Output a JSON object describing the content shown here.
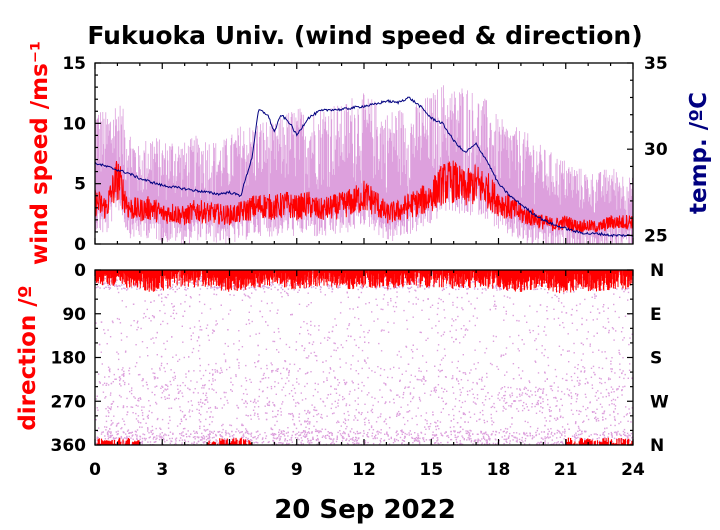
{
  "chart_data": [
    {
      "type": "line",
      "title": "Fukuoka Univ. (wind speed & direction)",
      "ylabel": "wind speed /ms⁻¹",
      "y2label": "temp. /ºC",
      "xlim": [
        0,
        24
      ],
      "ylim": [
        0,
        15
      ],
      "y2lim": [
        24.5,
        35
      ],
      "x_ticks": [
        "0",
        "3",
        "6",
        "9",
        "12",
        "15",
        "18",
        "21",
        "24"
      ],
      "y_ticks": [
        "0",
        "5",
        "10",
        "15"
      ],
      "y2_ticks": [
        "25",
        "30",
        "35"
      ],
      "colors": {
        "gust": "#dda0dd",
        "mean": "#ff0000",
        "temp": "#000080"
      },
      "series": [
        {
          "role": "mean",
          "x": [
            0,
            0.5,
            1,
            1.5,
            2,
            2.5,
            3,
            3.5,
            4,
            4.5,
            5,
            5.5,
            6,
            6.5,
            7,
            7.5,
            8,
            8.5,
            9,
            9.5,
            10,
            10.5,
            11,
            11.5,
            12,
            12.5,
            13,
            13.5,
            14,
            14.5,
            15,
            15.5,
            16,
            16.5,
            17,
            17.5,
            18,
            18.5,
            19,
            19.5,
            20,
            20.5,
            21,
            21.5,
            22,
            22.5,
            23,
            23.5,
            24
          ],
          "y": [
            3.5,
            3.0,
            5.5,
            3.0,
            2.8,
            3.0,
            2.5,
            2.6,
            2.3,
            2.8,
            2.6,
            2.5,
            2.4,
            2.6,
            3.0,
            3.2,
            3.0,
            3.3,
            3.0,
            3.3,
            2.8,
            3.0,
            3.2,
            3.5,
            4.0,
            3.5,
            2.5,
            2.7,
            3.2,
            3.5,
            4.0,
            5.0,
            5.2,
            4.5,
            5.0,
            4.5,
            3.5,
            3.0,
            2.5,
            2.2,
            1.8,
            1.6,
            1.8,
            1.5,
            1.5,
            1.4,
            1.8,
            1.8,
            1.9
          ]
        },
        {
          "role": "gust",
          "x": [
            0,
            0.5,
            1,
            1.5,
            2,
            2.5,
            3,
            3.5,
            4,
            4.5,
            5,
            5.5,
            6,
            6.5,
            7,
            7.5,
            8,
            8.5,
            9,
            9.5,
            10,
            10.5,
            11,
            11.5,
            12,
            12.5,
            13,
            13.5,
            14,
            14.5,
            15,
            15.5,
            16,
            16.5,
            17,
            17.5,
            18,
            18.5,
            19,
            19.5,
            20,
            20.5,
            21,
            21.5,
            22,
            22.5,
            23,
            23.5,
            24
          ],
          "y": [
            12.0,
            11.0,
            12.5,
            10.0,
            8.0,
            9.5,
            8.5,
            9.0,
            8.5,
            9.0,
            9.0,
            8.5,
            9.0,
            10.0,
            10.0,
            10.5,
            10.0,
            11.0,
            11.5,
            11.0,
            11.5,
            12.0,
            11.5,
            12.5,
            12.5,
            12.0,
            11.0,
            11.5,
            11.0,
            12.0,
            12.5,
            13.5,
            13.0,
            13.5,
            12.5,
            12.0,
            10.5,
            10.0,
            9.5,
            9.0,
            8.0,
            7.5,
            7.0,
            6.5,
            6.0,
            6.0,
            6.5,
            6.0,
            5.5
          ]
        },
        {
          "role": "temp",
          "x": [
            0,
            0.5,
            1,
            1.5,
            2,
            2.5,
            3,
            3.5,
            4,
            4.5,
            5,
            5.5,
            6,
            6.5,
            7,
            7.3,
            7.7,
            8,
            8.3,
            8.7,
            9,
            9.5,
            10,
            10.5,
            11,
            11.5,
            12,
            12.5,
            13,
            13.5,
            14,
            14.5,
            15,
            15.5,
            16,
            16.5,
            17,
            17.5,
            18,
            18.5,
            19,
            19.5,
            20,
            20.5,
            21,
            21.5,
            22,
            22.5,
            23,
            23.5,
            24
          ],
          "y": [
            29.2,
            29.0,
            28.8,
            28.6,
            28.3,
            28.1,
            27.9,
            27.8,
            27.7,
            27.6,
            27.5,
            27.4,
            27.5,
            27.3,
            29.5,
            32.3,
            32.0,
            31.0,
            32.0,
            31.5,
            30.8,
            31.8,
            32.2,
            32.3,
            32.3,
            32.4,
            32.5,
            32.6,
            32.8,
            32.7,
            33.0,
            32.5,
            31.8,
            31.5,
            30.5,
            29.8,
            30.3,
            29.3,
            28.0,
            27.3,
            26.8,
            26.3,
            25.9,
            25.6,
            25.4,
            25.2,
            25.1,
            25.1,
            25.0,
            25.0,
            25.0
          ]
        }
      ]
    },
    {
      "type": "scatter",
      "ylabel": "direction /º",
      "xlim": [
        0,
        24
      ],
      "ylim": [
        360,
        0
      ],
      "x_ticks": [
        "0",
        "3",
        "6",
        "9",
        "12",
        "15",
        "18",
        "21",
        "24"
      ],
      "y_ticks": [
        "0",
        "90",
        "180",
        "270",
        "360"
      ],
      "y2_ticks": [
        "N",
        "E",
        "S",
        "W",
        "N"
      ],
      "colors": {
        "gust_dir": "#dda0dd",
        "mean_dir": "#ff0000"
      },
      "series": [
        {
          "role": "mean_dir",
          "x": [
            0,
            0.5,
            1,
            1.5,
            2,
            2.5,
            3,
            3.5,
            4,
            4.5,
            5,
            5.5,
            6,
            6.5,
            7,
            7.5,
            8,
            8.5,
            9,
            9.5,
            10,
            10.5,
            11,
            11.5,
            12,
            12.5,
            13,
            13.5,
            14,
            14.5,
            15,
            15.5,
            16,
            16.5,
            17,
            17.5,
            18,
            18.5,
            19,
            19.5,
            20,
            20.5,
            21,
            21.5,
            22,
            22.5,
            23,
            23.5,
            24
          ],
          "y": [
            18,
            15,
            20,
            22,
            25,
            30,
            28,
            20,
            18,
            22,
            20,
            25,
            30,
            28,
            25,
            20,
            18,
            22,
            25,
            20,
            18,
            20,
            22,
            25,
            20,
            22,
            25,
            20,
            18,
            20,
            22,
            20,
            25,
            22,
            20,
            22,
            25,
            28,
            30,
            25,
            22,
            30,
            35,
            25,
            30,
            28,
            25,
            22,
            30
          ]
        }
      ]
    }
  ],
  "xlabel_date": "20 Sep 2022"
}
